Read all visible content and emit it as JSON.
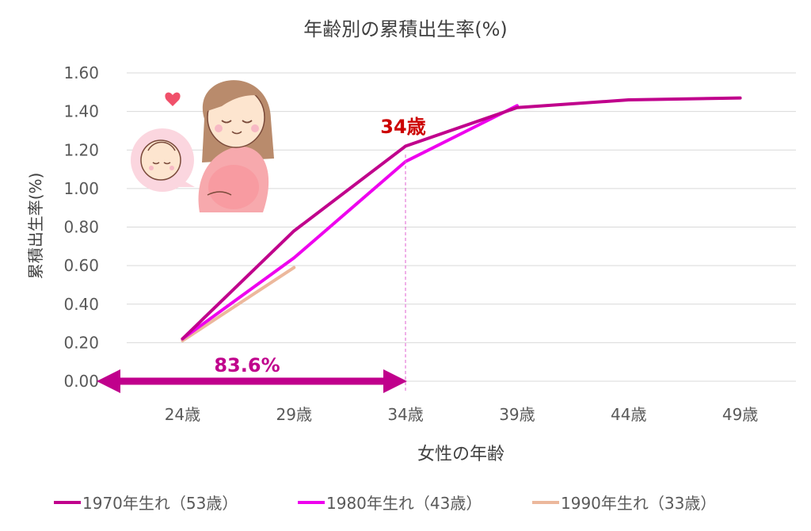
{
  "chart_data": {
    "type": "line",
    "title": "年齢別の累積出生率(%)",
    "xlabel": "女性の年齢",
    "ylabel": "累積出生率(%)",
    "categories": [
      "24歳",
      "29歳",
      "34歳",
      "39歳",
      "44歳",
      "49歳"
    ],
    "ylim": [
      0,
      1.6
    ],
    "yticks": [
      "0.00",
      "0.20",
      "0.40",
      "0.60",
      "0.80",
      "1.00",
      "1.20",
      "1.40",
      "1.60"
    ],
    "grid": true,
    "legend_position": "bottom",
    "series": [
      {
        "name": "1970年生れ（53歳）",
        "color": "#c0008c",
        "values": [
          0.22,
          0.78,
          1.22,
          1.42,
          1.46,
          1.47
        ]
      },
      {
        "name": "1980年生れ（43歳）",
        "color": "#ee00ee",
        "values": [
          0.22,
          0.64,
          1.14,
          1.43,
          null,
          null
        ]
      },
      {
        "name": "1990年生れ（33歳）",
        "color": "#ecb89c",
        "values": [
          0.21,
          0.59,
          null,
          null,
          null,
          null
        ]
      }
    ],
    "annotations": {
      "age_marker": "34歳",
      "share_label": "83.6%"
    }
  },
  "colors": {
    "arrow": "#c0008c",
    "marker_text": "#cc0000",
    "guide_line": "#e060d0"
  },
  "illustration": {
    "name": "pregnant-woman-illustration",
    "icons": [
      "heart-icon",
      "baby-face-icon"
    ]
  }
}
